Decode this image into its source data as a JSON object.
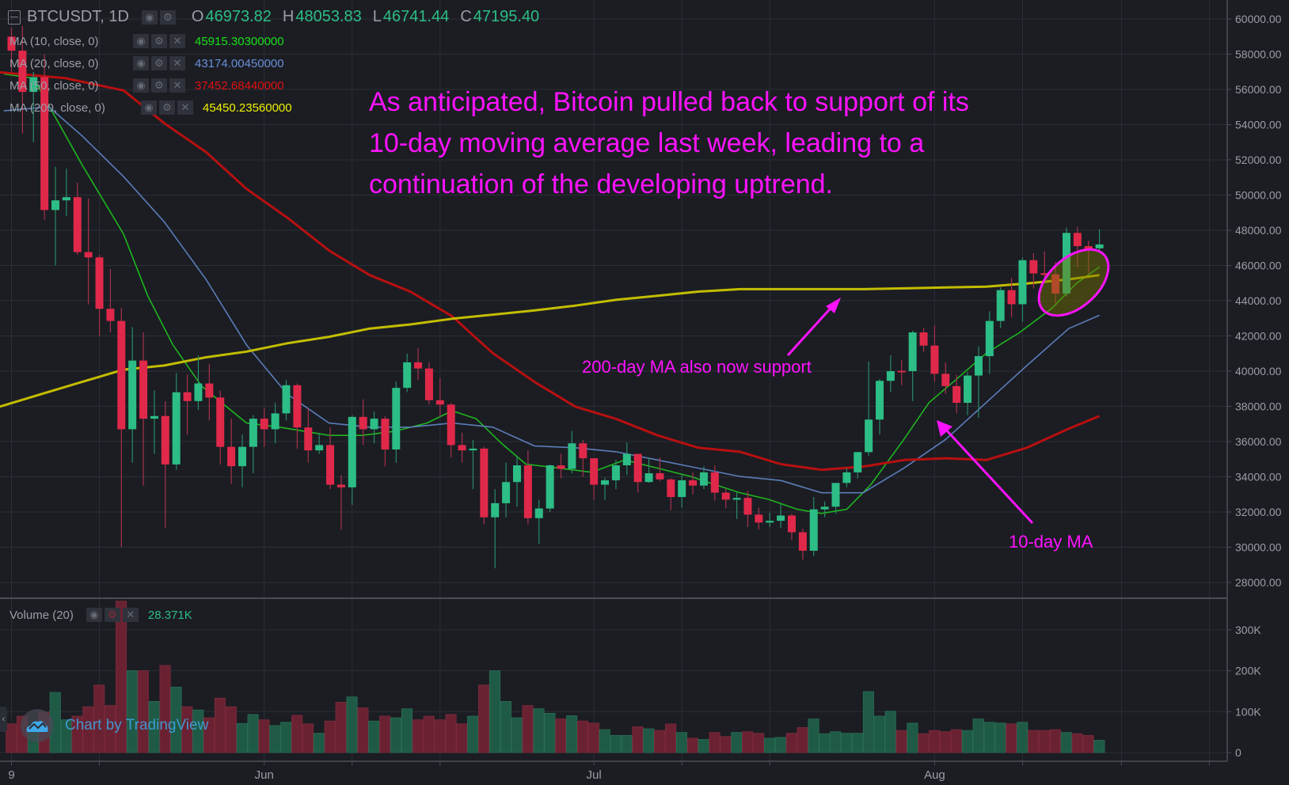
{
  "header": {
    "symbol": "BTCUSDT, 1D",
    "open_label": "O",
    "open": "46973.82",
    "high_label": "H",
    "high": "48053.83",
    "low_label": "L",
    "low": "46741.44",
    "close_label": "C",
    "close": "47195.40"
  },
  "indicators": [
    {
      "label": "MA (10, close, 0)",
      "value": "45915.30300000",
      "color": "#19e019",
      "line_color": "#1fb51f"
    },
    {
      "label": "MA (20, close, 0)",
      "value": "43174.00450000",
      "color": "#6a8fd8",
      "line_color": "#5b7db8"
    },
    {
      "label": "MA (50, close, 0)",
      "value": "37452.68440000",
      "color": "#e01010",
      "line_color": "#b81010"
    },
    {
      "label": "MA (200, close, 0)",
      "value": "45450.23560000",
      "color": "#f0f000",
      "line_color": "#c4bd00"
    }
  ],
  "volume_legend": {
    "label": "Volume (20)",
    "value": "28.371K"
  },
  "icons": {
    "eye": "◉",
    "gear": "⚙",
    "close": "✕",
    "collapse": "‹"
  },
  "annotations": {
    "main_lines": [
      "As anticipated, Bitcoin pulled back to support of its",
      "10-day moving average last week, leading to a",
      "continuation of the developing uptrend."
    ],
    "ma200_note": "200-day MA also now support",
    "ma10_note": "10-day MA",
    "color": "#ff13ff"
  },
  "watermark": "Chart by TradingView",
  "colors": {
    "up": "#2dbd86",
    "down": "#e0294a",
    "vol_up": "#1f5a46",
    "vol_down": "#6a2232",
    "bg": "#1b1d23",
    "grid": "#2a2e36"
  },
  "chart_data": {
    "type": "candlestick",
    "title": "BTCUSDT, 1D",
    "price_ticks": [
      "60000.00",
      "58000.00",
      "56000.00",
      "54000.00",
      "52000.00",
      "50000.00",
      "48000.00",
      "46000.00",
      "44000.00",
      "42000.00",
      "40000.00",
      "38000.00",
      "36000.00",
      "34000.00",
      "32000.00",
      "30000.00",
      "28000.00"
    ],
    "price_range": [
      27500,
      60500
    ],
    "volume_ticks": [
      {
        "v": 300,
        "label": "300K"
      },
      {
        "v": 200,
        "label": "200K"
      },
      {
        "v": 100,
        "label": "100K"
      },
      {
        "v": 0,
        "label": "0"
      }
    ],
    "x_ticks": [
      {
        "day": 0,
        "label": "9"
      },
      {
        "day": 23,
        "label": "Jun"
      },
      {
        "day": 53,
        "label": "Jul"
      },
      {
        "day": 84,
        "label": "Aug"
      }
    ],
    "grid_days": [
      0,
      8,
      23,
      31,
      39,
      53,
      61,
      69,
      84,
      92,
      101,
      109
    ],
    "candles_ohlc": [
      [
        59000,
        59500,
        57000,
        58200
      ],
      [
        58200,
        59600,
        53500,
        55860
      ],
      [
        55860,
        57000,
        53000,
        56700
      ],
      [
        56700,
        58000,
        48600,
        49150
      ],
      [
        49150,
        51600,
        46000,
        49700
      ],
      [
        49700,
        51500,
        48800,
        49880
      ],
      [
        49880,
        50700,
        46600,
        46760
      ],
      [
        46760,
        49800,
        43800,
        46460
      ],
      [
        46460,
        46600,
        42000,
        43540
      ],
      [
        43540,
        45800,
        42200,
        42850
      ],
      [
        42850,
        43600,
        30000,
        36700
      ],
      [
        36700,
        42500,
        34800,
        40600
      ],
      [
        40600,
        42200,
        33500,
        37300
      ],
      [
        37300,
        38900,
        35300,
        37450
      ],
      [
        37450,
        38300,
        31100,
        34700
      ],
      [
        34700,
        39900,
        34400,
        38800
      ],
      [
        38800,
        39800,
        36400,
        38300
      ],
      [
        38300,
        40900,
        37800,
        39300
      ],
      [
        39300,
        40400,
        37200,
        38500
      ],
      [
        38500,
        38900,
        34700,
        35700
      ],
      [
        35700,
        37300,
        33600,
        34600
      ],
      [
        34600,
        36400,
        33400,
        35700
      ],
      [
        35700,
        37500,
        34200,
        37300
      ],
      [
        37300,
        37900,
        35700,
        36700
      ],
      [
        36700,
        38200,
        35900,
        37600
      ],
      [
        37600,
        39500,
        37200,
        39200
      ],
      [
        39200,
        39300,
        35600,
        36800
      ],
      [
        36800,
        37900,
        34800,
        35500
      ],
      [
        35500,
        36500,
        35300,
        35800
      ],
      [
        35800,
        36800,
        33300,
        33550
      ],
      [
        33550,
        34100,
        31000,
        33400
      ],
      [
        33400,
        37500,
        32400,
        37400
      ],
      [
        37400,
        38400,
        35800,
        36700
      ],
      [
        36700,
        37700,
        35900,
        37300
      ],
      [
        37300,
        37450,
        34600,
        35550
      ],
      [
        35550,
        39400,
        34800,
        39050
      ],
      [
        39050,
        41000,
        38800,
        40500
      ],
      [
        40500,
        41300,
        39500,
        40150
      ],
      [
        40150,
        40500,
        38100,
        38350
      ],
      [
        38350,
        39600,
        37400,
        38100
      ],
      [
        38100,
        38200,
        35100,
        35800
      ],
      [
        35800,
        36500,
        34800,
        35500
      ],
      [
        35500,
        36100,
        33300,
        35600
      ],
      [
        35600,
        35700,
        31300,
        31700
      ],
      [
        31700,
        33300,
        28800,
        32500
      ],
      [
        32500,
        34800,
        31700,
        33700
      ],
      [
        33700,
        35200,
        32300,
        34650
      ],
      [
        34650,
        35500,
        31300,
        31650
      ],
      [
        31650,
        32700,
        30200,
        32200
      ],
      [
        32200,
        34700,
        32000,
        34650
      ],
      [
        34650,
        35300,
        33900,
        34450
      ],
      [
        34450,
        36600,
        34200,
        35900
      ],
      [
        35900,
        36100,
        34000,
        35050
      ],
      [
        35050,
        35050,
        32700,
        33550
      ],
      [
        33550,
        33950,
        32700,
        33800
      ],
      [
        33800,
        34950,
        33300,
        34650
      ],
      [
        34650,
        35950,
        34100,
        35300
      ],
      [
        35300,
        35300,
        33100,
        33700
      ],
      [
        33700,
        35100,
        33650,
        34200
      ],
      [
        34200,
        35100,
        33750,
        33850
      ],
      [
        33850,
        33900,
        32100,
        32850
      ],
      [
        32850,
        34100,
        32250,
        33800
      ],
      [
        33800,
        34250,
        33000,
        33500
      ],
      [
        33500,
        34600,
        33300,
        34250
      ],
      [
        34250,
        34650,
        32650,
        33100
      ],
      [
        33100,
        33300,
        32200,
        32700
      ],
      [
        32700,
        33100,
        31600,
        32800
      ],
      [
        32800,
        33200,
        31150,
        31850
      ],
      [
        31850,
        32250,
        31000,
        31400
      ],
      [
        31400,
        31950,
        31150,
        31500
      ],
      [
        31500,
        32450,
        31100,
        31800
      ],
      [
        31800,
        31900,
        30400,
        30850
      ],
      [
        30850,
        31050,
        29300,
        29800
      ],
      [
        29800,
        32850,
        29500,
        32150
      ],
      [
        32150,
        32600,
        31700,
        32300
      ],
      [
        32300,
        33650,
        31900,
        33650
      ],
      [
        33650,
        34500,
        33400,
        34250
      ],
      [
        34250,
        35400,
        33900,
        35400
      ],
      [
        35400,
        40550,
        35200,
        37250
      ],
      [
        37250,
        39550,
        36400,
        39450
      ],
      [
        39450,
        40900,
        38800,
        40000
      ],
      [
        40020,
        40650,
        39200,
        39990
      ],
      [
        40000,
        42300,
        38300,
        42200
      ],
      [
        42200,
        42450,
        41100,
        41450
      ],
      [
        41450,
        42600,
        39400,
        39850
      ],
      [
        39850,
        40500,
        38700,
        39150
      ],
      [
        39150,
        39800,
        37600,
        38200
      ],
      [
        38200,
        39950,
        37500,
        39750
      ],
      [
        39750,
        41400,
        37350,
        40850
      ],
      [
        40850,
        43400,
        39850,
        42850
      ],
      [
        42850,
        44750,
        42450,
        44600
      ],
      [
        44600,
        45300,
        43050,
        43800
      ],
      [
        43800,
        46450,
        42800,
        46300
      ],
      [
        46300,
        46700,
        44700,
        45550
      ],
      [
        45560,
        46800,
        45350,
        45500
      ],
      [
        45500,
        46200,
        43800,
        44400
      ],
      [
        44400,
        48150,
        44250,
        47850
      ],
      [
        47850,
        48200,
        45900,
        47100
      ],
      [
        47100,
        47400,
        45500,
        46950
      ],
      [
        46973.82,
        48053.83,
        46741.44,
        47195.4
      ]
    ],
    "volume_k": [
      70,
      89,
      60,
      99,
      147,
      80,
      89,
      112,
      165,
      115,
      370,
      200,
      200,
      125,
      213,
      160,
      112,
      104,
      85,
      133,
      112,
      71,
      93,
      80,
      66,
      74,
      91,
      70,
      47,
      77,
      123,
      136,
      109,
      77,
      89,
      85,
      107,
      80,
      89,
      80,
      93,
      70,
      89,
      165,
      200,
      125,
      85,
      115,
      107,
      96,
      82,
      90,
      77,
      72,
      56,
      42,
      42,
      63,
      58,
      54,
      70,
      49,
      35,
      32,
      49,
      39,
      49,
      51,
      47,
      35,
      37,
      47,
      61,
      82,
      46,
      51,
      47,
      47,
      149,
      89,
      101,
      54,
      72,
      46,
      54,
      51,
      56,
      54,
      82,
      74,
      72,
      70,
      74,
      54,
      54,
      56,
      49,
      46,
      42,
      30
    ],
    "moving_averages": [
      {
        "name": "MA10",
        "points": [
          [
            -0.7,
            56875
          ],
          [
            2,
            56640
          ],
          [
            6.4,
            51745
          ],
          [
            10.2,
            47780
          ],
          [
            12.4,
            44280
          ],
          [
            14.7,
            41480
          ],
          [
            17.3,
            39150
          ],
          [
            19.1,
            38220
          ],
          [
            21.4,
            37050
          ],
          [
            24.4,
            36820
          ],
          [
            28.9,
            36350
          ],
          [
            31.9,
            36350
          ],
          [
            34.9,
            36590
          ],
          [
            37.8,
            37050
          ],
          [
            40.1,
            37750
          ],
          [
            42.3,
            37290
          ],
          [
            44.6,
            35890
          ],
          [
            46.8,
            34720
          ],
          [
            49.8,
            34490
          ],
          [
            52.8,
            34255
          ],
          [
            55.8,
            34955
          ],
          [
            58.8,
            34490
          ],
          [
            61.8,
            34020
          ],
          [
            64,
            33555
          ],
          [
            66.3,
            33090
          ],
          [
            68.9,
            32715
          ],
          [
            71.5,
            32155
          ],
          [
            73.7,
            31920
          ],
          [
            76,
            32155
          ],
          [
            78.2,
            33555
          ],
          [
            81.2,
            36120
          ],
          [
            83.5,
            38220
          ],
          [
            85.7,
            39385
          ],
          [
            88.7,
            41020
          ],
          [
            91.7,
            42180
          ],
          [
            94.7,
            43580
          ],
          [
            96.9,
            44980
          ],
          [
            99,
            45915
          ]
        ]
      },
      {
        "name": "MA20",
        "points": [
          [
            -0.7,
            54780
          ],
          [
            3.4,
            55010
          ],
          [
            6.4,
            53380
          ],
          [
            10.2,
            51045
          ],
          [
            13.9,
            48480
          ],
          [
            17.7,
            45215
          ],
          [
            21.4,
            41480
          ],
          [
            25.1,
            38690
          ],
          [
            28.9,
            37050
          ],
          [
            32.6,
            36820
          ],
          [
            36.3,
            36820
          ],
          [
            40.1,
            37050
          ],
          [
            43.8,
            36820
          ],
          [
            47.6,
            35750
          ],
          [
            51.3,
            35650
          ],
          [
            55,
            35420
          ],
          [
            58.8,
            34955
          ],
          [
            62.5,
            34490
          ],
          [
            66.3,
            34020
          ],
          [
            70,
            33790
          ],
          [
            73.7,
            33090
          ],
          [
            77.5,
            33090
          ],
          [
            81.2,
            34490
          ],
          [
            85,
            36120
          ],
          [
            88.7,
            38220
          ],
          [
            92.4,
            40320
          ],
          [
            96.2,
            42420
          ],
          [
            99,
            43174
          ]
        ]
      },
      {
        "name": "MA50",
        "points": [
          [
            -1.05,
            56970
          ],
          [
            4.9,
            56640
          ],
          [
            10.2,
            55940
          ],
          [
            13.9,
            54080
          ],
          [
            17.7,
            52445
          ],
          [
            21.4,
            50345
          ],
          [
            25.1,
            48715
          ],
          [
            28.9,
            46850
          ],
          [
            32.6,
            45450
          ],
          [
            36.3,
            44515
          ],
          [
            40.1,
            43115
          ],
          [
            43.8,
            41020
          ],
          [
            47.6,
            39385
          ],
          [
            51.3,
            37985
          ],
          [
            55,
            37290
          ],
          [
            58.8,
            36350
          ],
          [
            62.5,
            35650
          ],
          [
            66.3,
            35420
          ],
          [
            70,
            34720
          ],
          [
            73.7,
            34395
          ],
          [
            77.5,
            34580
          ],
          [
            81.2,
            34955
          ],
          [
            85,
            35050
          ],
          [
            88.7,
            34955
          ],
          [
            92.4,
            35650
          ],
          [
            96.2,
            36730
          ],
          [
            99,
            37452
          ]
        ]
      },
      {
        "name": "MA200",
        "points": [
          [
            -1.05,
            37985
          ],
          [
            2.7,
            38690
          ],
          [
            6.4,
            39385
          ],
          [
            10.2,
            40085
          ],
          [
            13.9,
            40320
          ],
          [
            17.7,
            40785
          ],
          [
            21.4,
            41110
          ],
          [
            25.1,
            41580
          ],
          [
            28.9,
            41950
          ],
          [
            32.6,
            42420
          ],
          [
            36.3,
            42650
          ],
          [
            40.1,
            42975
          ],
          [
            43.8,
            43210
          ],
          [
            47.6,
            43445
          ],
          [
            51.3,
            43720
          ],
          [
            55,
            44050
          ],
          [
            58.8,
            44280
          ],
          [
            62.5,
            44515
          ],
          [
            66.3,
            44655
          ],
          [
            70,
            44655
          ],
          [
            73.7,
            44655
          ],
          [
            77.5,
            44655
          ],
          [
            81.2,
            44700
          ],
          [
            85,
            44750
          ],
          [
            88.7,
            44800
          ],
          [
            92.4,
            44980
          ],
          [
            96.2,
            45215
          ],
          [
            99,
            45450
          ]
        ]
      }
    ]
  }
}
